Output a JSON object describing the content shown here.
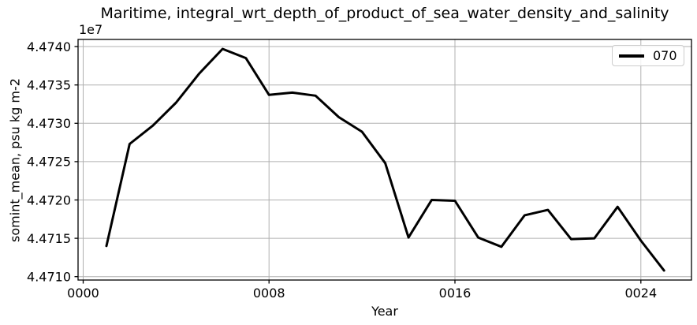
{
  "chart_data": {
    "type": "line",
    "title": "Maritime, integral_wrt_depth_of_product_of_sea_water_density_and_salinity",
    "xlabel": "Year",
    "ylabel": "somint_mean, psu kg m-2",
    "offset_text": "1e7",
    "grid": true,
    "legend_position": "upper right",
    "x": [
      1,
      2,
      3,
      4,
      5,
      6,
      7,
      8,
      9,
      10,
      11,
      12,
      13,
      14,
      15,
      16,
      17,
      18,
      19,
      20,
      21,
      22,
      23,
      24,
      25
    ],
    "series": [
      {
        "name": "070",
        "color": "#000000",
        "linewidth": 3,
        "values": [
          44714000,
          44727300,
          44729700,
          44732700,
          44736500,
          44739700,
          44738500,
          44733700,
          44734000,
          44733600,
          44730800,
          44728900,
          44724800,
          44715100,
          44720000,
          44719900,
          44715100,
          44713900,
          44718000,
          44718700,
          44714900,
          44715000,
          44719100,
          44714700,
          44710800
        ]
      }
    ],
    "xlim": [
      -0.22,
      26.18
    ],
    "ylim": [
      44709560,
      44740930
    ],
    "xticks": {
      "values": [
        0,
        8,
        16,
        24
      ],
      "labels": [
        "0000",
        "0008",
        "0016",
        "0024"
      ]
    },
    "yticks": {
      "values": [
        44710000,
        44715000,
        44720000,
        44725000,
        44730000,
        44735000,
        44740000
      ],
      "labels": [
        "4.4710",
        "4.4715",
        "4.4720",
        "4.4725",
        "4.4730",
        "4.4735",
        "4.4740"
      ]
    }
  },
  "colors": {
    "grid": "#b0b0b0",
    "spine": "#000000",
    "text": "#000000",
    "background": "#ffffff",
    "legend_border": "#cccccc"
  }
}
